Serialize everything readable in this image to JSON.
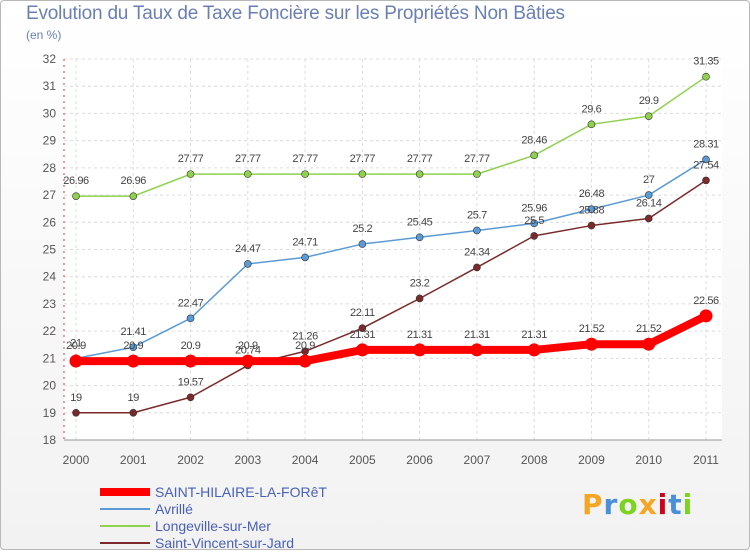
{
  "chart_data": {
    "type": "line",
    "title": "Evolution du Taux de Taxe Foncière sur les Propriétés Non Bâties",
    "ylabel": "(en %)",
    "xlabel": "",
    "ylim": [
      18,
      32
    ],
    "grid": true,
    "categories": [
      "2000",
      "2001",
      "2002",
      "2003",
      "2004",
      "2005",
      "2006",
      "2007",
      "2008",
      "2009",
      "2010",
      "2011"
    ],
    "yticks": [
      "18",
      "19",
      "20",
      "21",
      "22",
      "23",
      "24",
      "25",
      "26",
      "27",
      "28",
      "29",
      "30",
      "31",
      "32"
    ],
    "series": [
      {
        "name": "Longeville-sur-Mer",
        "color": "#8fd14f",
        "values": [
          26.96,
          26.96,
          27.77,
          27.77,
          27.77,
          27.77,
          27.77,
          27.77,
          28.46,
          29.6,
          29.9,
          31.35
        ],
        "labels": [
          "26.96",
          "26.96",
          "27.77",
          "27.77",
          "27.77",
          "27.77",
          "27.77",
          "27.77",
          "28.46",
          "29.6",
          "29.9",
          "31.35"
        ]
      },
      {
        "name": "Avrillé",
        "color": "#5b9bd5",
        "values": [
          21.0,
          21.41,
          22.47,
          24.47,
          24.71,
          25.2,
          25.45,
          25.7,
          25.96,
          26.48,
          27.0,
          28.31
        ],
        "labels": [
          "21",
          "21.41",
          "22.47",
          "24.47",
          "24.71",
          "25.2",
          "25.45",
          "25.7",
          "25.96",
          "26.48",
          "27",
          "28.31"
        ]
      },
      {
        "name": "Saint-Vincent-sur-Jard",
        "color": "#7a2a2a",
        "values": [
          19.0,
          19.0,
          19.57,
          20.74,
          21.26,
          22.11,
          23.2,
          24.34,
          25.5,
          25.88,
          26.14,
          27.54
        ],
        "labels": [
          "19",
          "19",
          "19.57",
          "20.74",
          "21.26",
          "22.11",
          "23.2",
          "24.34",
          "25.5",
          "25.88",
          "26.14",
          "27.54"
        ]
      },
      {
        "name": "SAINT-HILAIRE-LA-FORêT",
        "color": "#ff0000",
        "values": [
          20.9,
          20.9,
          20.9,
          20.9,
          20.9,
          21.31,
          21.31,
          21.31,
          21.31,
          21.52,
          21.52,
          22.56
        ],
        "labels": [
          "20.9",
          "20.9",
          "20.9",
          "20.9",
          "20.9",
          "21.31",
          "21.31",
          "21.31",
          "21.31",
          "21.52",
          "21.52",
          "22.56"
        ]
      }
    ],
    "legend": [
      {
        "label": "SAINT-HILAIRE-LA-FORêT",
        "color": "#ff0000"
      },
      {
        "label": "Avrillé",
        "color": "#5b9bd5"
      },
      {
        "label": "Longeville-sur-Mer",
        "color": "#8fd14f"
      },
      {
        "label": "Saint-Vincent-sur-Jard",
        "color": "#7a2a2a"
      }
    ]
  },
  "logo": {
    "letters": [
      "P",
      "r",
      "o",
      "x",
      "i",
      "t",
      "i"
    ],
    "colors": [
      "#f5a623",
      "#4a90d9",
      "#7ed321",
      "#f5a623",
      "#d0021b",
      "#4a90d9",
      "#7ed321"
    ]
  }
}
